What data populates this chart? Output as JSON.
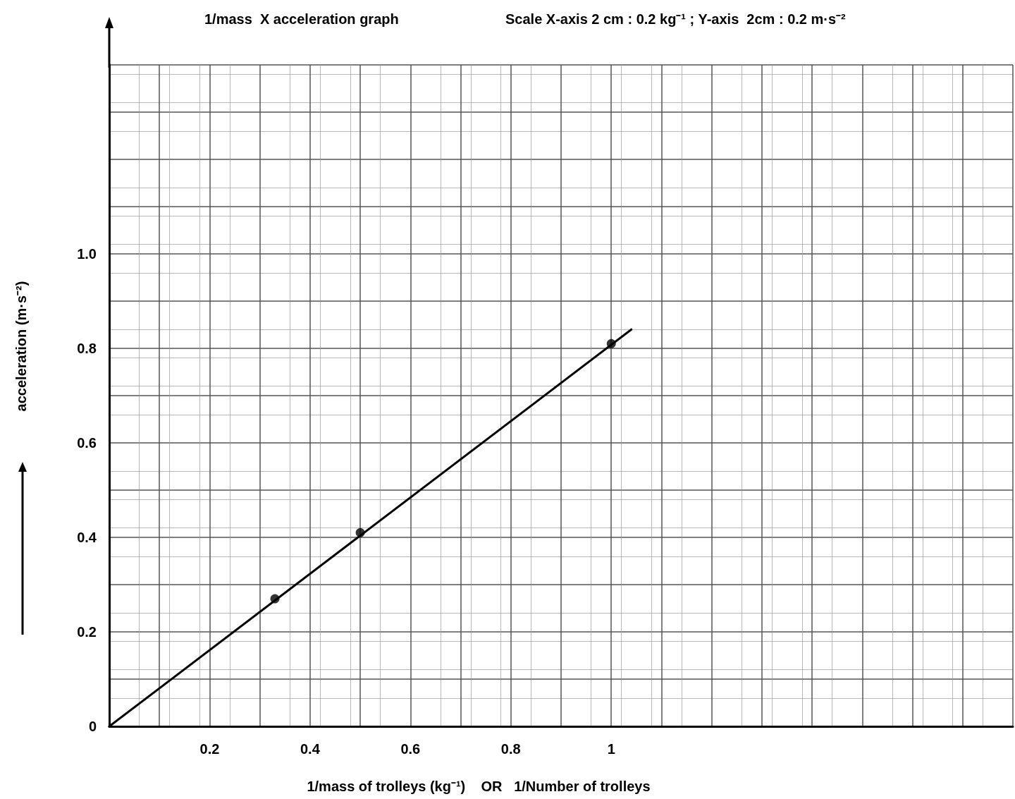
{
  "chart_data": {
    "type": "scatter",
    "title": "1/mass  X acceleration graph",
    "subtitle": "Scale X-axis 2 cm : 0.2 kg⁻¹ ; Y-axis  2cm : 0.2 m·s⁻²",
    "xlabel": "1/mass of trolleys (kg⁻¹)    OR   1/Number of trolleys",
    "ylabel": "acceleration (m·s⁻²)",
    "series": [
      {
        "color": "#000000",
        "x": [
          0.33,
          0.5,
          1
        ],
        "values": [
          0.27,
          0.41,
          0.81
        ],
        "marker": "circle"
      },
      {
        "type": "line",
        "color": "#000000",
        "x": [
          0,
          1.04
        ],
        "values": [
          0,
          0.84
        ],
        "marker": "none",
        "line_style": "solid"
      }
    ],
    "xlim": [
      0,
      1.8
    ],
    "ylim": [
      0,
      1.4
    ],
    "xticks": [
      {
        "value": 0.1,
        "label": null
      },
      0.2,
      {
        "value": 0.3,
        "label": null
      },
      0.4,
      {
        "value": 0.5,
        "label": null
      },
      0.6,
      {
        "value": 0.7,
        "label": null
      },
      0.8,
      {
        "value": 0.9,
        "label": null
      },
      1,
      {
        "value": 1.1,
        "label": null
      },
      {
        "value": 1.2,
        "label": null
      },
      {
        "value": 1.3,
        "label": null
      },
      {
        "value": 1.4,
        "label": null
      },
      {
        "value": 1.5,
        "label": null
      },
      {
        "value": 1.6,
        "label": null
      },
      {
        "value": 1.7,
        "label": null
      },
      {
        "value": 1.8,
        "label": null
      }
    ],
    "yticks": [
      0,
      {
        "value": 0.1,
        "label": null
      },
      0.2,
      {
        "value": 0.3,
        "label": null
      },
      0.4,
      {
        "value": 0.5,
        "label": null
      },
      0.6,
      {
        "value": 0.7,
        "label": null
      },
      0.8,
      {
        "value": 0.9,
        "label": null
      },
      {
        "value": 1,
        "label": "1.0"
      },
      {
        "value": 1.1,
        "label": null
      },
      {
        "value": 1.2,
        "label": null
      },
      {
        "value": 1.3,
        "label": null
      },
      {
        "value": 1.4,
        "label": null
      }
    ],
    "grid": true
  }
}
